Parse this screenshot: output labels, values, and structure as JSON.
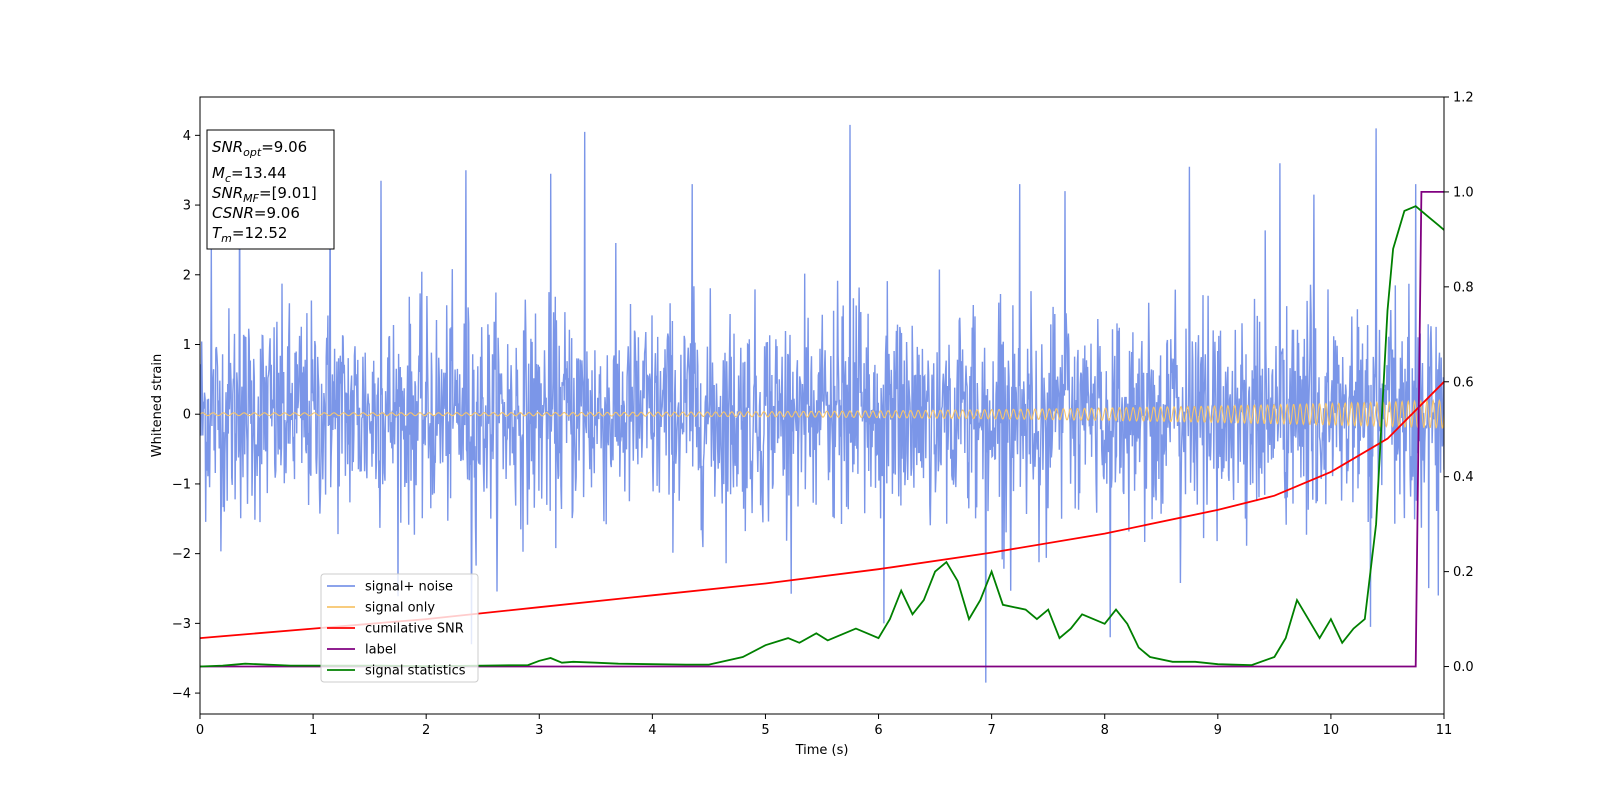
{
  "chart_data": {
    "type": "line",
    "title": "",
    "xlabel": "Time (s)",
    "ylabel": "Whitened strain",
    "xlim": [
      0,
      11
    ],
    "ylim": [
      -4.3,
      4.55
    ],
    "y2lim": [
      -0.1,
      1.2
    ],
    "x_ticks": [
      "0",
      "1",
      "2",
      "3",
      "4",
      "5",
      "6",
      "7",
      "8",
      "9",
      "10",
      "11"
    ],
    "y_ticks": [
      "−4",
      "−3",
      "−2",
      "−1",
      "0",
      "1",
      "2",
      "3",
      "4"
    ],
    "y2_ticks": [
      "0.0",
      "0.2",
      "0.4",
      "0.6",
      "0.8",
      "1.0",
      "1.2"
    ],
    "grid": false,
    "legend_position": "lower-left",
    "info_box": [
      {
        "sym": "SNR",
        "sub": "opt",
        "val": "=9.06"
      },
      {
        "sym": "M",
        "sub": "c",
        "val": "=13.44"
      },
      {
        "sym": "SNR",
        "sub": "MF",
        "val": "=[9.01]"
      },
      {
        "sym": "CSNR",
        "sub": "",
        "val": "=9.06"
      },
      {
        "sym": "T",
        "sub": "m",
        "val": "=12.52"
      }
    ],
    "series": [
      {
        "name": "signal+ noise",
        "axis": "left",
        "color": "#7b96e8",
        "noise_std": 0.75,
        "peak_points": [
          [
            0.1,
            2.4
          ],
          [
            0.35,
            3.6
          ],
          [
            1.15,
            3.55
          ],
          [
            1.6,
            3.35
          ],
          [
            2.35,
            3.5
          ],
          [
            2.4,
            -3.3
          ],
          [
            3.1,
            3.45
          ],
          [
            3.4,
            4.05
          ],
          [
            3.4,
            -3.55
          ],
          [
            4.35,
            3.3
          ],
          [
            5.75,
            4.15
          ],
          [
            6.05,
            -3.0
          ],
          [
            6.95,
            -3.85
          ],
          [
            7.25,
            3.3
          ],
          [
            7.65,
            3.2
          ],
          [
            8.05,
            -3.2
          ],
          [
            8.75,
            3.55
          ],
          [
            9.55,
            3.6
          ],
          [
            9.85,
            3.15
          ],
          [
            10.4,
            4.1
          ],
          [
            10.35,
            -3.05
          ],
          [
            10.75,
            3.3
          ],
          [
            10.95,
            -2.6
          ]
        ]
      },
      {
        "name": "signal only",
        "axis": "left",
        "color": "#f7c56b",
        "amplitude_start": 0.02,
        "amplitude_end": 0.2,
        "cycles": 160
      },
      {
        "name": "cumilative SNR",
        "axis": "right",
        "color": "#ff0000",
        "x": [
          0,
          1,
          2,
          3,
          4,
          5,
          6,
          7,
          8,
          9,
          9.5,
          10,
          10.5,
          11
        ],
        "y": [
          0.06,
          0.08,
          0.1,
          0.125,
          0.15,
          0.175,
          0.205,
          0.24,
          0.28,
          0.33,
          0.36,
          0.41,
          0.48,
          0.6
        ]
      },
      {
        "name": "label",
        "axis": "right",
        "color": "#800080",
        "x": [
          0,
          10.75,
          10.8,
          11
        ],
        "y": [
          0,
          0,
          1,
          1
        ]
      },
      {
        "name": "signal statistics",
        "axis": "right",
        "color": "#008000",
        "x": [
          0,
          0.2,
          0.4,
          0.6,
          0.8,
          1.0,
          1.5,
          2.0,
          2.5,
          2.9,
          3.0,
          3.1,
          3.2,
          3.3,
          3.5,
          3.7,
          4.0,
          4.3,
          4.5,
          4.8,
          5.0,
          5.2,
          5.3,
          5.45,
          5.55,
          5.7,
          5.8,
          5.9,
          6.0,
          6.1,
          6.2,
          6.3,
          6.4,
          6.5,
          6.6,
          6.7,
          6.8,
          6.9,
          7.0,
          7.1,
          7.2,
          7.3,
          7.4,
          7.5,
          7.6,
          7.7,
          7.8,
          7.9,
          8.0,
          8.1,
          8.2,
          8.3,
          8.4,
          8.6,
          8.8,
          9.0,
          9.3,
          9.5,
          9.6,
          9.7,
          9.8,
          9.9,
          10.0,
          10.1,
          10.2,
          10.3,
          10.4,
          10.5,
          10.55,
          10.65,
          10.75,
          10.85,
          10.95,
          11.0
        ],
        "y": [
          0,
          0.002,
          0.006,
          0.004,
          0.002,
          0.002,
          0.002,
          0.001,
          0.002,
          0.003,
          0.012,
          0.018,
          0.008,
          0.01,
          0.008,
          0.006,
          0.005,
          0.004,
          0.004,
          0.02,
          0.045,
          0.06,
          0.05,
          0.07,
          0.055,
          0.07,
          0.08,
          0.07,
          0.06,
          0.1,
          0.16,
          0.11,
          0.14,
          0.2,
          0.22,
          0.18,
          0.1,
          0.14,
          0.2,
          0.13,
          0.125,
          0.12,
          0.1,
          0.12,
          0.06,
          0.08,
          0.11,
          0.1,
          0.09,
          0.12,
          0.09,
          0.04,
          0.02,
          0.01,
          0.01,
          0.005,
          0.003,
          0.02,
          0.06,
          0.14,
          0.1,
          0.06,
          0.1,
          0.05,
          0.08,
          0.1,
          0.3,
          0.75,
          0.88,
          0.96,
          0.97,
          0.95,
          0.93,
          0.92
        ]
      }
    ]
  }
}
